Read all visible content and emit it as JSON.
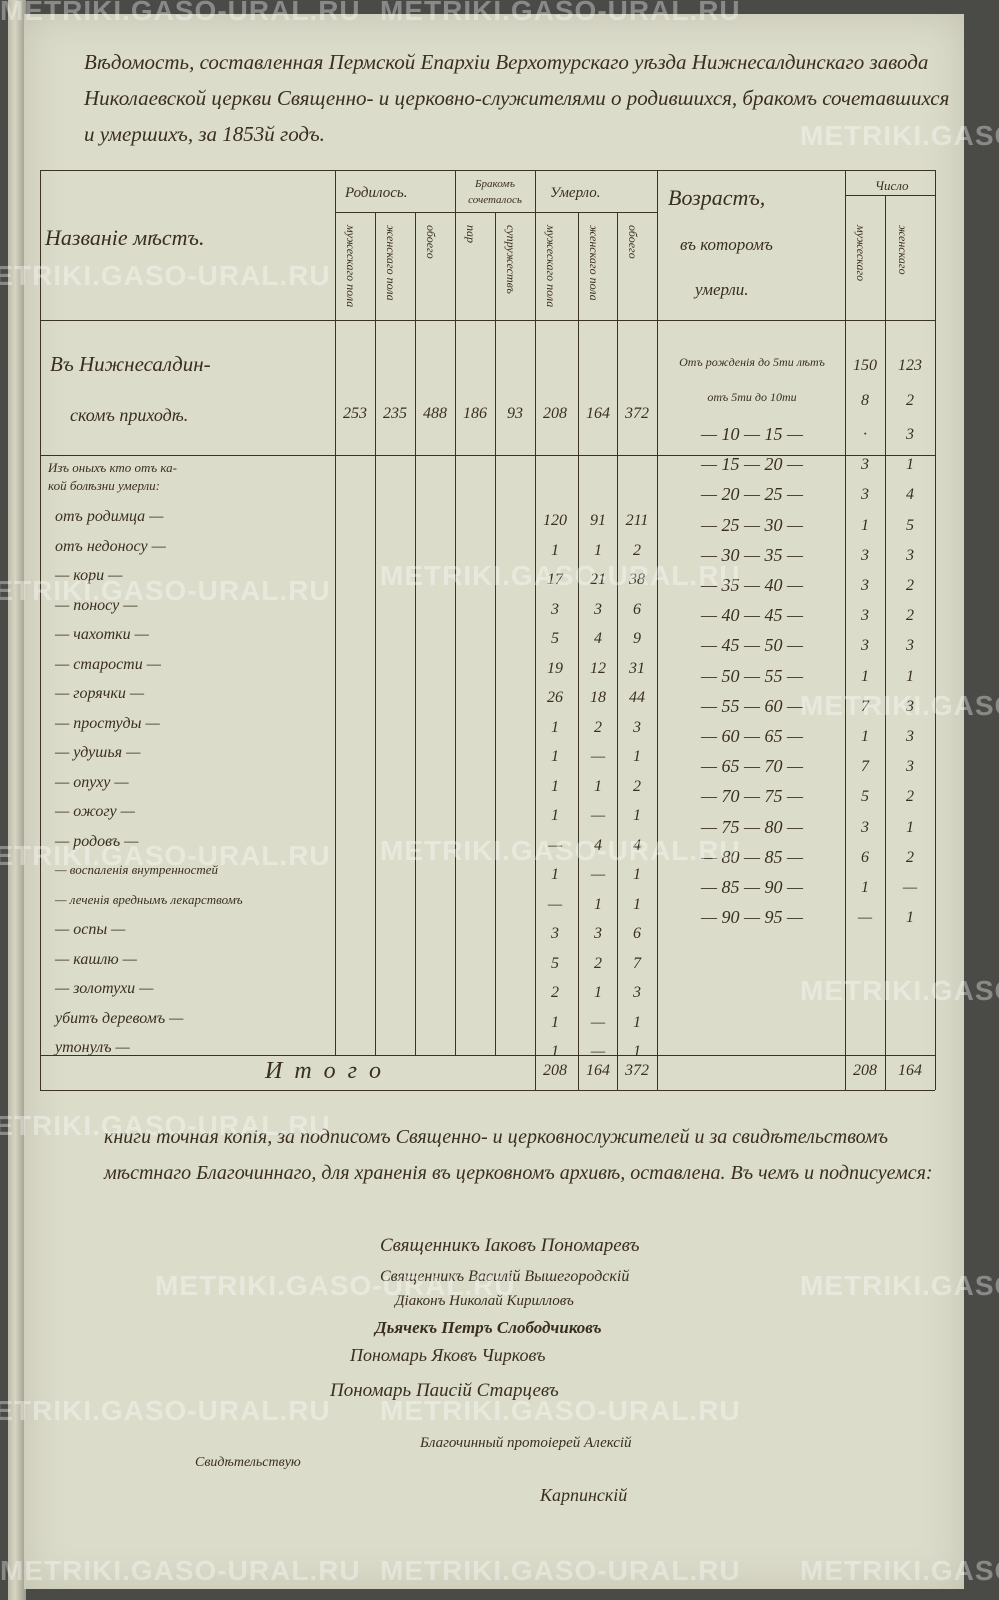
{
  "header": {
    "title": "Вѣдомость, составленная Пермской Епархіи Верхотурскаго уѣзда Нижнесалдинскаго завода Николаевской церкви Священно- и церковно-служителями о родившихся, бракомъ сочетавшихся и умершихъ, за 1853й годъ."
  },
  "table": {
    "col_name": "Названіе мѣстъ.",
    "born": {
      "label": "Родилось.",
      "male": "мужескаго пола",
      "female": "женскаго пола",
      "both": "обоего"
    },
    "married": {
      "label": "Бракомъ сочеталось",
      "couples": "пар",
      "mixed": "супружествъ"
    },
    "died": {
      "label": "Умерло.",
      "male": "мужескаго пола",
      "female": "женскаго пола",
      "both": "обоего"
    },
    "age": {
      "label1": "Возрастъ,",
      "label2": "въ которомъ",
      "label3": "умерли."
    },
    "count": {
      "label": "Число",
      "male": "мужескаго",
      "female": "женскаго"
    },
    "parish": {
      "line1": "Въ Нижнесалдин-",
      "line2": "скомъ приходѣ.",
      "values": [
        "253",
        "235",
        "488",
        "186",
        "93",
        "208",
        "164",
        "372"
      ]
    },
    "causes_heading": [
      "Изъ оныхъ кто отъ ка-",
      "кой болѣзни умерли:"
    ],
    "causes": [
      {
        "label": "отъ родимца —",
        "m": "120",
        "f": "91",
        "b": "211"
      },
      {
        "label": "отъ недоносу —",
        "m": "1",
        "f": "1",
        "b": "2"
      },
      {
        "label": "— кори —",
        "m": "17",
        "f": "21",
        "b": "38"
      },
      {
        "label": "— поносу —",
        "m": "3",
        "f": "3",
        "b": "6"
      },
      {
        "label": "— чахотки —",
        "m": "5",
        "f": "4",
        "b": "9"
      },
      {
        "label": "— старости —",
        "m": "19",
        "f": "12",
        "b": "31"
      },
      {
        "label": "— горячки —",
        "m": "26",
        "f": "18",
        "b": "44"
      },
      {
        "label": "— простуды —",
        "m": "1",
        "f": "2",
        "b": "3"
      },
      {
        "label": "— удушья —",
        "m": "1",
        "f": "—",
        "b": "1"
      },
      {
        "label": "— опуху —",
        "m": "1",
        "f": "1",
        "b": "2"
      },
      {
        "label": "— ожогу —",
        "m": "1",
        "f": "—",
        "b": "1"
      },
      {
        "label": "— родовъ —",
        "m": "—",
        "f": "4",
        "b": "4"
      },
      {
        "label": "— воспаленія внутренностей",
        "m": "1",
        "f": "—",
        "b": "1"
      },
      {
        "label": "— леченія вреднымъ лекарствомъ",
        "m": "—",
        "f": "1",
        "b": "1"
      },
      {
        "label": "— оспы —",
        "m": "3",
        "f": "3",
        "b": "6"
      },
      {
        "label": "— кашлю —",
        "m": "5",
        "f": "2",
        "b": "7"
      },
      {
        "label": "— золотухи —",
        "m": "2",
        "f": "1",
        "b": "3"
      },
      {
        "label": "убитъ деревомъ —",
        "m": "1",
        "f": "—",
        "b": "1"
      },
      {
        "label": "утонулъ —",
        "m": "1",
        "f": "—",
        "b": "1"
      }
    ],
    "ages": [
      {
        "range": "Отъ рожденія до 5ти лѣтъ",
        "m": "150",
        "f": "123"
      },
      {
        "range": "отъ 5ти до 10ти",
        "m": "8",
        "f": "2"
      },
      {
        "range": "— 10 — 15 —",
        "m": "·",
        "f": "3"
      },
      {
        "range": "— 15 — 20 —",
        "m": "3",
        "f": "1"
      },
      {
        "range": "— 20 — 25 —",
        "m": "3",
        "f": "4"
      },
      {
        "range": "— 25 — 30 —",
        "m": "1",
        "f": "5"
      },
      {
        "range": "— 30 — 35 —",
        "m": "3",
        "f": "3"
      },
      {
        "range": "— 35 — 40 —",
        "m": "3",
        "f": "2"
      },
      {
        "range": "— 40 — 45 —",
        "m": "3",
        "f": "2"
      },
      {
        "range": "— 45 — 50 —",
        "m": "3",
        "f": "3"
      },
      {
        "range": "— 50 — 55 —",
        "m": "1",
        "f": "1"
      },
      {
        "range": "— 55 — 60 —",
        "m": "7",
        "f": "3"
      },
      {
        "range": "— 60 — 65 —",
        "m": "1",
        "f": "3"
      },
      {
        "range": "— 65 — 70 —",
        "m": "7",
        "f": "3"
      },
      {
        "range": "— 70 — 75 —",
        "m": "5",
        "f": "2"
      },
      {
        "range": "— 75 — 80 —",
        "m": "3",
        "f": "1"
      },
      {
        "range": "— 80 — 85 —",
        "m": "6",
        "f": "2"
      },
      {
        "range": "— 85 — 90 —",
        "m": "1",
        "f": "—"
      },
      {
        "range": "— 90 — 95 —",
        "m": "—",
        "f": "1"
      }
    ],
    "total": {
      "label": "Итого",
      "m": "208",
      "f": "164",
      "b": "372",
      "age_m": "208",
      "age_f": "164"
    }
  },
  "certification": "книги точная копія, за подписомъ Священно- и церковнослужителей и за свидѣтельствомъ мѣстнаго Благочиннаго, для храненія въ церковномъ архивѣ, оставлена. Въ чемъ и подписуемся:",
  "signatures": [
    "Священникъ Іаковъ Пономаревъ",
    "Священникъ Василій Вышегородскій",
    "Діаконъ Николай Кирилловъ",
    "Дьячекъ Петръ Слободчиковъ",
    "Пономарь Яковъ Чирковъ",
    "Пономарь Паисій Старцевъ",
    "Благочинный протоіерей Алексій",
    "Карпинскій",
    "Свидѣтельствую"
  ],
  "watermark": "METRIKI.GASO-URAL.RU"
}
